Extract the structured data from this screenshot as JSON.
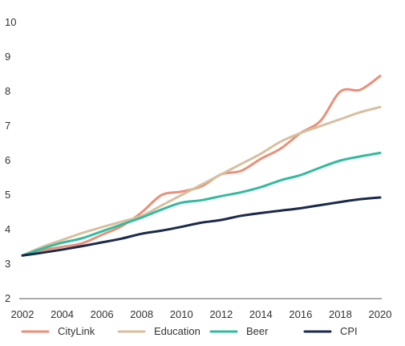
{
  "chart_data": {
    "type": "line",
    "title": "",
    "xlabel": "",
    "ylabel": "",
    "xlim": [
      2002,
      2020
    ],
    "ylim": [
      2,
      10
    ],
    "xticks": [
      "2002",
      "2004",
      "2006",
      "2008",
      "2010",
      "2012",
      "2014",
      "2016",
      "2018",
      "2020"
    ],
    "yticks": [
      "2",
      "3",
      "4",
      "5",
      "6",
      "7",
      "8",
      "9",
      "10"
    ],
    "grid": false,
    "legend_position": "bottom",
    "x": [
      2002,
      2003,
      2004,
      2005,
      2006,
      2007,
      2008,
      2009,
      2010,
      2011,
      2012,
      2013,
      2014,
      2015,
      2016,
      2017,
      2018,
      2019,
      2020
    ],
    "series": [
      {
        "name": "CityLink",
        "color": "#E8907A",
        "values": [
          3.25,
          3.4,
          3.5,
          3.6,
          3.85,
          4.1,
          4.5,
          5.0,
          5.1,
          5.25,
          5.6,
          5.7,
          6.05,
          6.35,
          6.8,
          7.15,
          8.0,
          8.05,
          8.45
        ]
      },
      {
        "name": "Education",
        "color": "#D7C09F",
        "values": [
          3.25,
          3.5,
          3.7,
          3.9,
          4.07,
          4.23,
          4.4,
          4.7,
          5.0,
          5.3,
          5.6,
          5.9,
          6.2,
          6.55,
          6.8,
          7.0,
          7.2,
          7.4,
          7.55
        ]
      },
      {
        "name": "Beer",
        "color": "#33BBA0",
        "values": [
          3.25,
          3.45,
          3.62,
          3.75,
          3.95,
          4.15,
          4.35,
          4.58,
          4.78,
          4.85,
          4.97,
          5.08,
          5.23,
          5.43,
          5.58,
          5.8,
          6.0,
          6.12,
          6.22
        ]
      },
      {
        "name": "CPI",
        "color": "#1B2A4A",
        "values": [
          3.25,
          3.33,
          3.42,
          3.52,
          3.63,
          3.74,
          3.88,
          3.97,
          4.08,
          4.2,
          4.28,
          4.4,
          4.48,
          4.55,
          4.62,
          4.71,
          4.8,
          4.88,
          4.93
        ]
      }
    ]
  }
}
